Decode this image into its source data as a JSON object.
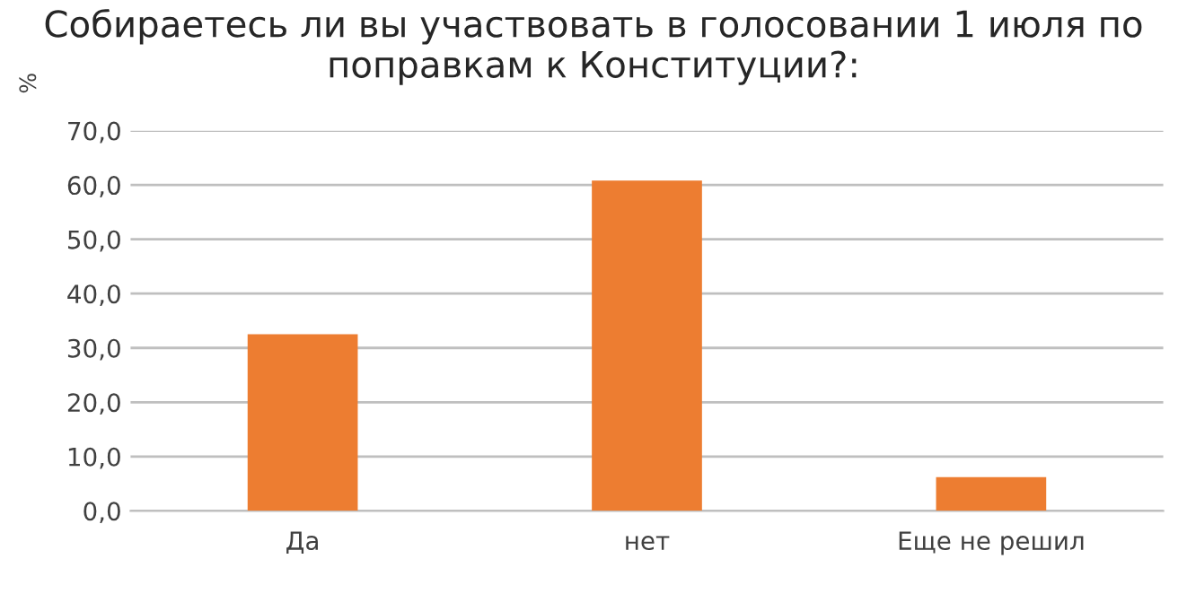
{
  "chart_data": {
    "type": "bar",
    "title": "Собираетесь ли вы участвовать в голосовании 1 июля по поправкам к Конституции?:",
    "ylabel": "%",
    "categories": [
      "Да",
      "нет",
      "Еще не решил"
    ],
    "values": [
      32.5,
      60.8,
      6.2
    ],
    "color": "#ed7d31",
    "ylim": [
      0,
      70
    ],
    "yticks": [
      {
        "value": 0,
        "label": "0,0"
      },
      {
        "value": 10,
        "label": "10,0"
      },
      {
        "value": 20,
        "label": "20,0"
      },
      {
        "value": 30,
        "label": "30,0"
      },
      {
        "value": 40,
        "label": "40,0"
      },
      {
        "value": 50,
        "label": "50,0"
      },
      {
        "value": 60,
        "label": "60,0"
      },
      {
        "value": 70,
        "label": "70,0"
      }
    ],
    "grid": "y"
  }
}
